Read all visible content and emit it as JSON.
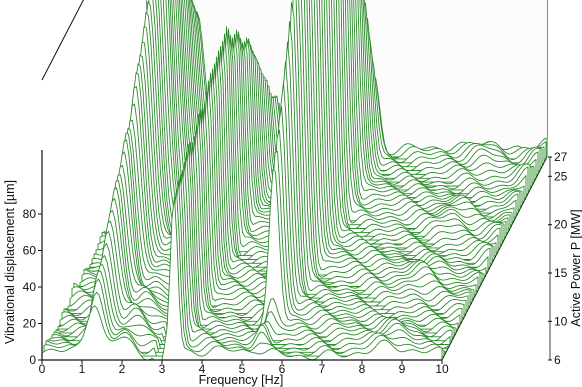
{
  "chart_data": {
    "type": "waterfall",
    "xlabel": "Frequency [Hz]",
    "ylabel": "Vibrational displacement [µm]",
    "zlabel": "Active Power P [MW]",
    "x_ticks": [
      0,
      1,
      2,
      3,
      4,
      5,
      6,
      7,
      8,
      9,
      10
    ],
    "y_ticks": [
      0,
      20,
      40,
      60,
      80
    ],
    "z_ticks": [
      6,
      10,
      15,
      20,
      25,
      27
    ],
    "xlim": [
      0,
      10
    ],
    "ylim": [
      0,
      80
    ],
    "zlim": [
      6,
      27
    ],
    "grid": false,
    "line_color": "#2e8b2e",
    "power_levels_MW": [
      6.0,
      6.4,
      6.8,
      7.2,
      7.6,
      8.0,
      8.4,
      8.8,
      9.2,
      9.6,
      10.0,
      10.4,
      10.8,
      11.2,
      11.6,
      12.0,
      12.4,
      12.8,
      13.2,
      13.6,
      14.0,
      14.4,
      14.8,
      15.2,
      15.6,
      16.0,
      16.4,
      16.8,
      17.2,
      17.6,
      18.0,
      18.4,
      18.8,
      19.2,
      19.6,
      20.0,
      20.4,
      20.8,
      21.2,
      21.6,
      22.0,
      22.4,
      22.8,
      23.2,
      23.6,
      24.0,
      24.4,
      24.8,
      25.2,
      25.6,
      26.0,
      26.4,
      26.8,
      27.0
    ],
    "peaks": [
      {
        "frequency_Hz": 1.3,
        "power_MW": [
          6,
          27
        ],
        "max_displacement_um": [
          15,
          45,
          85,
          40
        ]
      },
      {
        "frequency_Hz": 3.3,
        "power_MW": [
          6,
          27
        ],
        "max_displacement_um": [
          45,
          55,
          65,
          45,
          10
        ]
      },
      {
        "frequency_Hz": 5.7,
        "power_MW": [
          6,
          27
        ],
        "max_displacement_um": [
          5,
          90,
          130,
          20
        ]
      }
    ]
  }
}
